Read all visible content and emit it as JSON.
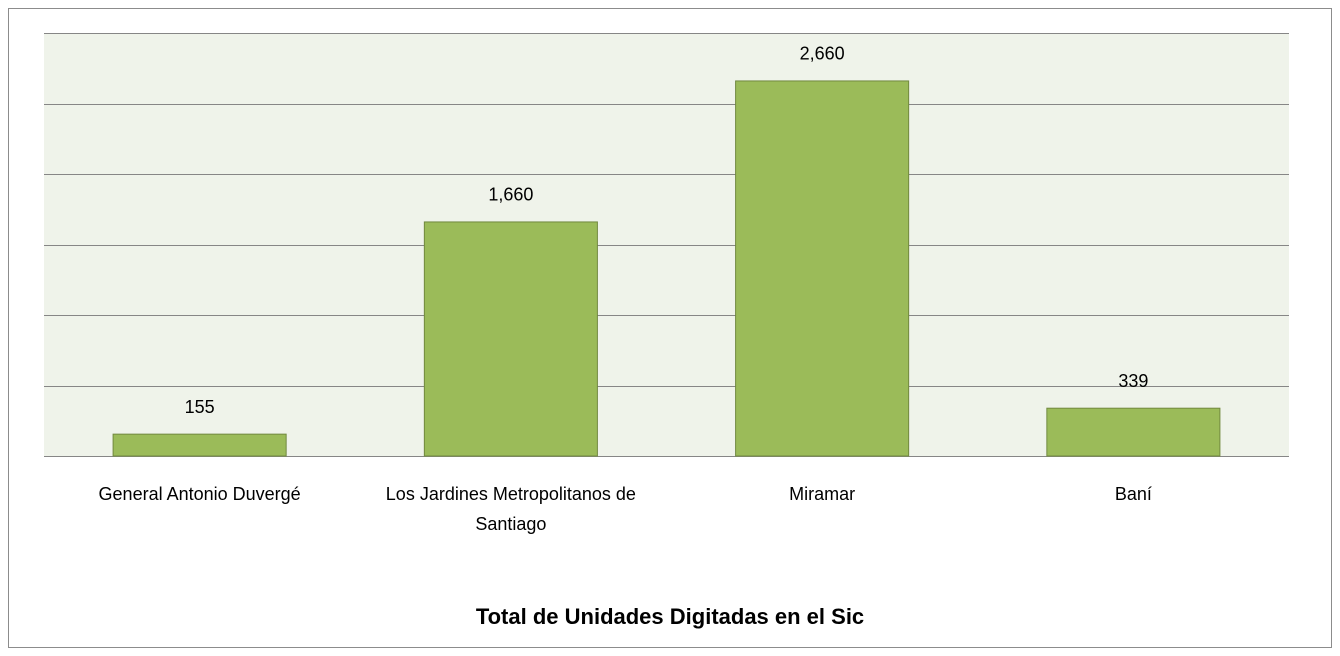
{
  "chart_data": {
    "type": "bar",
    "title": "Total  de Unidades Digitadas en el Sic",
    "categories": [
      "General Antonio Duvergé",
      "Los Jardines Metropolitanos de Santiago",
      "Miramar",
      "Baní"
    ],
    "values": [
      155,
      1660,
      2660,
      339
    ],
    "value_labels": [
      "155",
      "1,660",
      "2,660",
      "339"
    ],
    "color": "#9bbb59",
    "ylim": [
      0,
      3000
    ],
    "yticks": [
      0,
      500,
      1000,
      1500,
      2000,
      2500,
      3000
    ],
    "grid": true
  }
}
